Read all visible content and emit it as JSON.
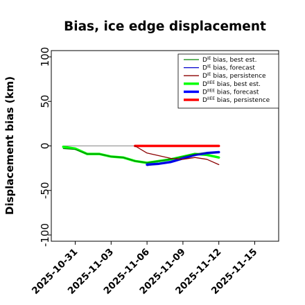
{
  "chart_data": {
    "type": "line",
    "title": "Bias, ice edge displacement",
    "xlabel": "",
    "ylabel": "Displacement bias (km)",
    "xlim": [
      "2025-10-29",
      "2025-11-17"
    ],
    "ylim": [
      -107,
      107
    ],
    "yticks": [
      -100,
      -50,
      0,
      50,
      100
    ],
    "xticks": [
      {
        "date": "2025-10-31",
        "label": "2025-10-31",
        "color": "#000000"
      },
      {
        "date": "2025-11-03",
        "label": "2025-11-03",
        "color": "#000000"
      },
      {
        "date": "2025-11-06",
        "label": "2025-11-06",
        "color": "#228b22"
      },
      {
        "date": "2025-11-09",
        "label": "2025-11-09",
        "color": "#000000"
      },
      {
        "date": "2025-11-12",
        "label": "2025-11-12",
        "color": "#000000"
      },
      {
        "date": "2025-11-15",
        "label": "2025-11-15",
        "color": "#000000"
      }
    ],
    "zero_line": {
      "y": 0,
      "x": [
        "2025-10-30",
        "2025-11-12"
      ],
      "color": "#888888"
    },
    "legend_position": "upper right",
    "series": [
      {
        "name": "D^IE bias, best est.",
        "sup": "IE",
        "prefix": "D",
        "suffix": " bias, best est.",
        "color": "#008000",
        "width": 1.3,
        "x": [
          "2025-10-30",
          "2025-10-31",
          "2025-11-01",
          "2025-11-02",
          "2025-11-03",
          "2025-11-04",
          "2025-11-05",
          "2025-11-06",
          "2025-11-07",
          "2025-11-08",
          "2025-11-09",
          "2025-11-10",
          "2025-11-11",
          "2025-11-12"
        ],
        "y": [
          -3,
          -4,
          -9,
          -9,
          -12,
          -13,
          -17,
          -19,
          -17,
          -15,
          -12,
          -9,
          -8,
          -7
        ]
      },
      {
        "name": "D^IE bias, forecast",
        "sup": "IE",
        "prefix": "D",
        "suffix": " bias, forecast",
        "color": "#0000cc",
        "width": 1.3,
        "x": [
          "2025-11-06",
          "2025-11-07",
          "2025-11-08",
          "2025-11-09",
          "2025-11-10",
          "2025-11-11",
          "2025-11-12"
        ],
        "y": [
          -22,
          -20,
          -18,
          -15,
          -10,
          -8,
          -7
        ]
      },
      {
        "name": "D^IE bias, persistence",
        "sup": "IE",
        "prefix": "D",
        "suffix": " bias, persistence",
        "color": "#8b0000",
        "width": 1.3,
        "x": [
          "2025-11-05",
          "2025-11-06",
          "2025-11-07",
          "2025-11-08",
          "2025-11-09",
          "2025-11-10",
          "2025-11-11",
          "2025-11-12"
        ],
        "y": [
          0,
          -8,
          -11,
          -14,
          -15,
          -13,
          -15,
          -21
        ]
      },
      {
        "name": "D^IIEE bias, best est.",
        "sup": "IIEE",
        "prefix": "D",
        "suffix": " bias, best est.",
        "color": "#00ff00",
        "width": 3.5,
        "x": [
          "2025-10-30",
          "2025-10-31",
          "2025-11-01",
          "2025-11-02",
          "2025-11-03",
          "2025-11-04",
          "2025-11-05",
          "2025-11-06",
          "2025-11-07",
          "2025-11-08",
          "2025-11-09",
          "2025-11-10",
          "2025-11-11",
          "2025-11-12"
        ],
        "y": [
          -1,
          -3,
          -9,
          -9,
          -12,
          -13,
          -17,
          -19,
          -17,
          -15,
          -12,
          -9,
          -10,
          -13
        ]
      },
      {
        "name": "D^IIEE bias, forecast",
        "sup": "IIEE",
        "prefix": "D",
        "suffix": " bias, forecast",
        "color": "#0000ff",
        "width": 3.5,
        "x": [
          "2025-11-06",
          "2025-11-07",
          "2025-11-08",
          "2025-11-09",
          "2025-11-10",
          "2025-11-11",
          "2025-11-12"
        ],
        "y": [
          -21,
          -20,
          -18,
          -14,
          -10,
          -8,
          -7
        ]
      },
      {
        "name": "D^IIEE bias, persistence",
        "sup": "IIEE",
        "prefix": "D",
        "suffix": " bias, persistence",
        "color": "#ff0000",
        "width": 3.5,
        "x": [
          "2025-11-05",
          "2025-11-06",
          "2025-11-07",
          "2025-11-08",
          "2025-11-09",
          "2025-11-10",
          "2025-11-11",
          "2025-11-12"
        ],
        "y": [
          0,
          0,
          0,
          0,
          0,
          0,
          0,
          0
        ]
      }
    ]
  }
}
